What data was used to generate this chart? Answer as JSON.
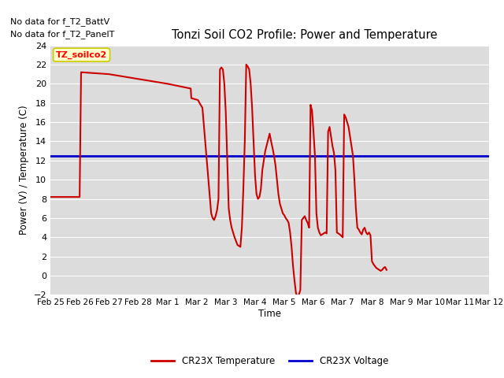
{
  "title": "Tonzi Soil CO2 Profile: Power and Temperature",
  "ylabel": "Power (V) / Temperature (C)",
  "xlabel": "Time",
  "ylim": [
    -2,
    24
  ],
  "fig_bg_color": "#ffffff",
  "plot_bg_color": "#dcdcdc",
  "no_data_text1": "No data for f_T2_BattV",
  "no_data_text2": "No data for f_T2_PanelT",
  "annotation_text": "TZ_soilco2",
  "annotation_bg": "#ffffcc",
  "annotation_border": "#cccc00",
  "blue_line_value": 12.5,
  "blue_color": "#0000cc",
  "red_color": "#cc0000",
  "legend_red": "CR23X Temperature",
  "legend_blue": "CR23X Voltage",
  "tick_labels": [
    "Feb 25",
    "Feb 26",
    "Feb 27",
    "Feb 28",
    "Mar 1",
    "Mar 2",
    "Mar 3",
    "Mar 4",
    "Mar 5",
    "Mar 6",
    "Mar 7",
    "Mar 8",
    "Mar 9",
    "Mar 10",
    "Mar 11",
    "Mar 12"
  ],
  "yticks": [
    -2,
    0,
    2,
    4,
    6,
    8,
    10,
    12,
    14,
    16,
    18,
    20,
    22,
    24
  ],
  "red_x": [
    0.0,
    0.05,
    1.0,
    1.05,
    2.0,
    3.0,
    4.0,
    4.8,
    4.82,
    5.05,
    5.1,
    5.2,
    5.5,
    5.55,
    5.6,
    5.65,
    5.7,
    5.75,
    5.8,
    5.85,
    5.9,
    5.95,
    6.0,
    6.05,
    6.1,
    6.15,
    6.2,
    6.25,
    6.3,
    6.4,
    6.5,
    6.55,
    6.6,
    6.65,
    6.7,
    6.75,
    6.8,
    6.85,
    6.9,
    6.95,
    7.0,
    7.05,
    7.1,
    7.15,
    7.2,
    7.25,
    7.3,
    7.35,
    7.5,
    7.55,
    7.6,
    7.65,
    7.7,
    7.75,
    7.8,
    7.85,
    7.9,
    7.95,
    8.0,
    8.05,
    8.1,
    8.15,
    8.2,
    8.25,
    8.3,
    8.35,
    8.4,
    8.45,
    8.5,
    8.55,
    8.6,
    8.65,
    8.7,
    8.75,
    8.8,
    8.85,
    8.9,
    8.95,
    9.0,
    9.05,
    9.1,
    9.15,
    9.2,
    9.25,
    9.3,
    9.4,
    9.45,
    9.5,
    9.55,
    9.6,
    9.65,
    9.7,
    9.75,
    9.8,
    9.9,
    10.0,
    10.05,
    10.1,
    10.15,
    10.2,
    10.25,
    10.3,
    10.35,
    10.4,
    10.45,
    10.5,
    10.55,
    10.6,
    10.65,
    10.7,
    10.75,
    10.8,
    10.85,
    10.9,
    10.95,
    11.0,
    11.05,
    11.1,
    11.15,
    11.2,
    11.25,
    11.3,
    11.35,
    11.4,
    11.45,
    11.5
  ],
  "red_y": [
    8.2,
    8.2,
    8.2,
    21.2,
    21.0,
    20.5,
    20.0,
    19.5,
    18.5,
    18.3,
    18.0,
    17.5,
    6.5,
    6.0,
    5.8,
    6.2,
    6.8,
    8.0,
    21.5,
    21.7,
    21.5,
    20.0,
    17.0,
    12.0,
    7.0,
    5.8,
    5.0,
    4.5,
    4.0,
    3.2,
    3.0,
    5.0,
    9.0,
    14.0,
    22.0,
    21.8,
    21.5,
    20.0,
    17.5,
    14.0,
    10.5,
    8.5,
    8.0,
    8.2,
    9.0,
    11.0,
    12.0,
    13.0,
    14.8,
    14.0,
    13.3,
    12.5,
    11.5,
    10.0,
    8.5,
    7.5,
    7.0,
    6.5,
    6.3,
    6.0,
    5.8,
    5.5,
    4.5,
    3.0,
    1.0,
    -0.5,
    -1.8,
    -2.2,
    -2.0,
    -1.5,
    5.8,
    6.0,
    6.2,
    5.8,
    5.5,
    5.0,
    17.8,
    17.2,
    15.0,
    12.5,
    6.5,
    5.0,
    4.5,
    4.2,
    4.3,
    4.5,
    4.4,
    15.0,
    15.5,
    14.5,
    13.5,
    12.8,
    11.0,
    4.5,
    4.3,
    4.0,
    16.8,
    16.5,
    16.0,
    15.5,
    14.5,
    13.5,
    12.5,
    10.0,
    7.0,
    5.0,
    4.8,
    4.5,
    4.3,
    4.8,
    5.0,
    4.5,
    4.3,
    4.5,
    4.2,
    1.5,
    1.2,
    1.0,
    0.8,
    0.7,
    0.6,
    0.5,
    0.6,
    0.8,
    0.9,
    0.6
  ]
}
